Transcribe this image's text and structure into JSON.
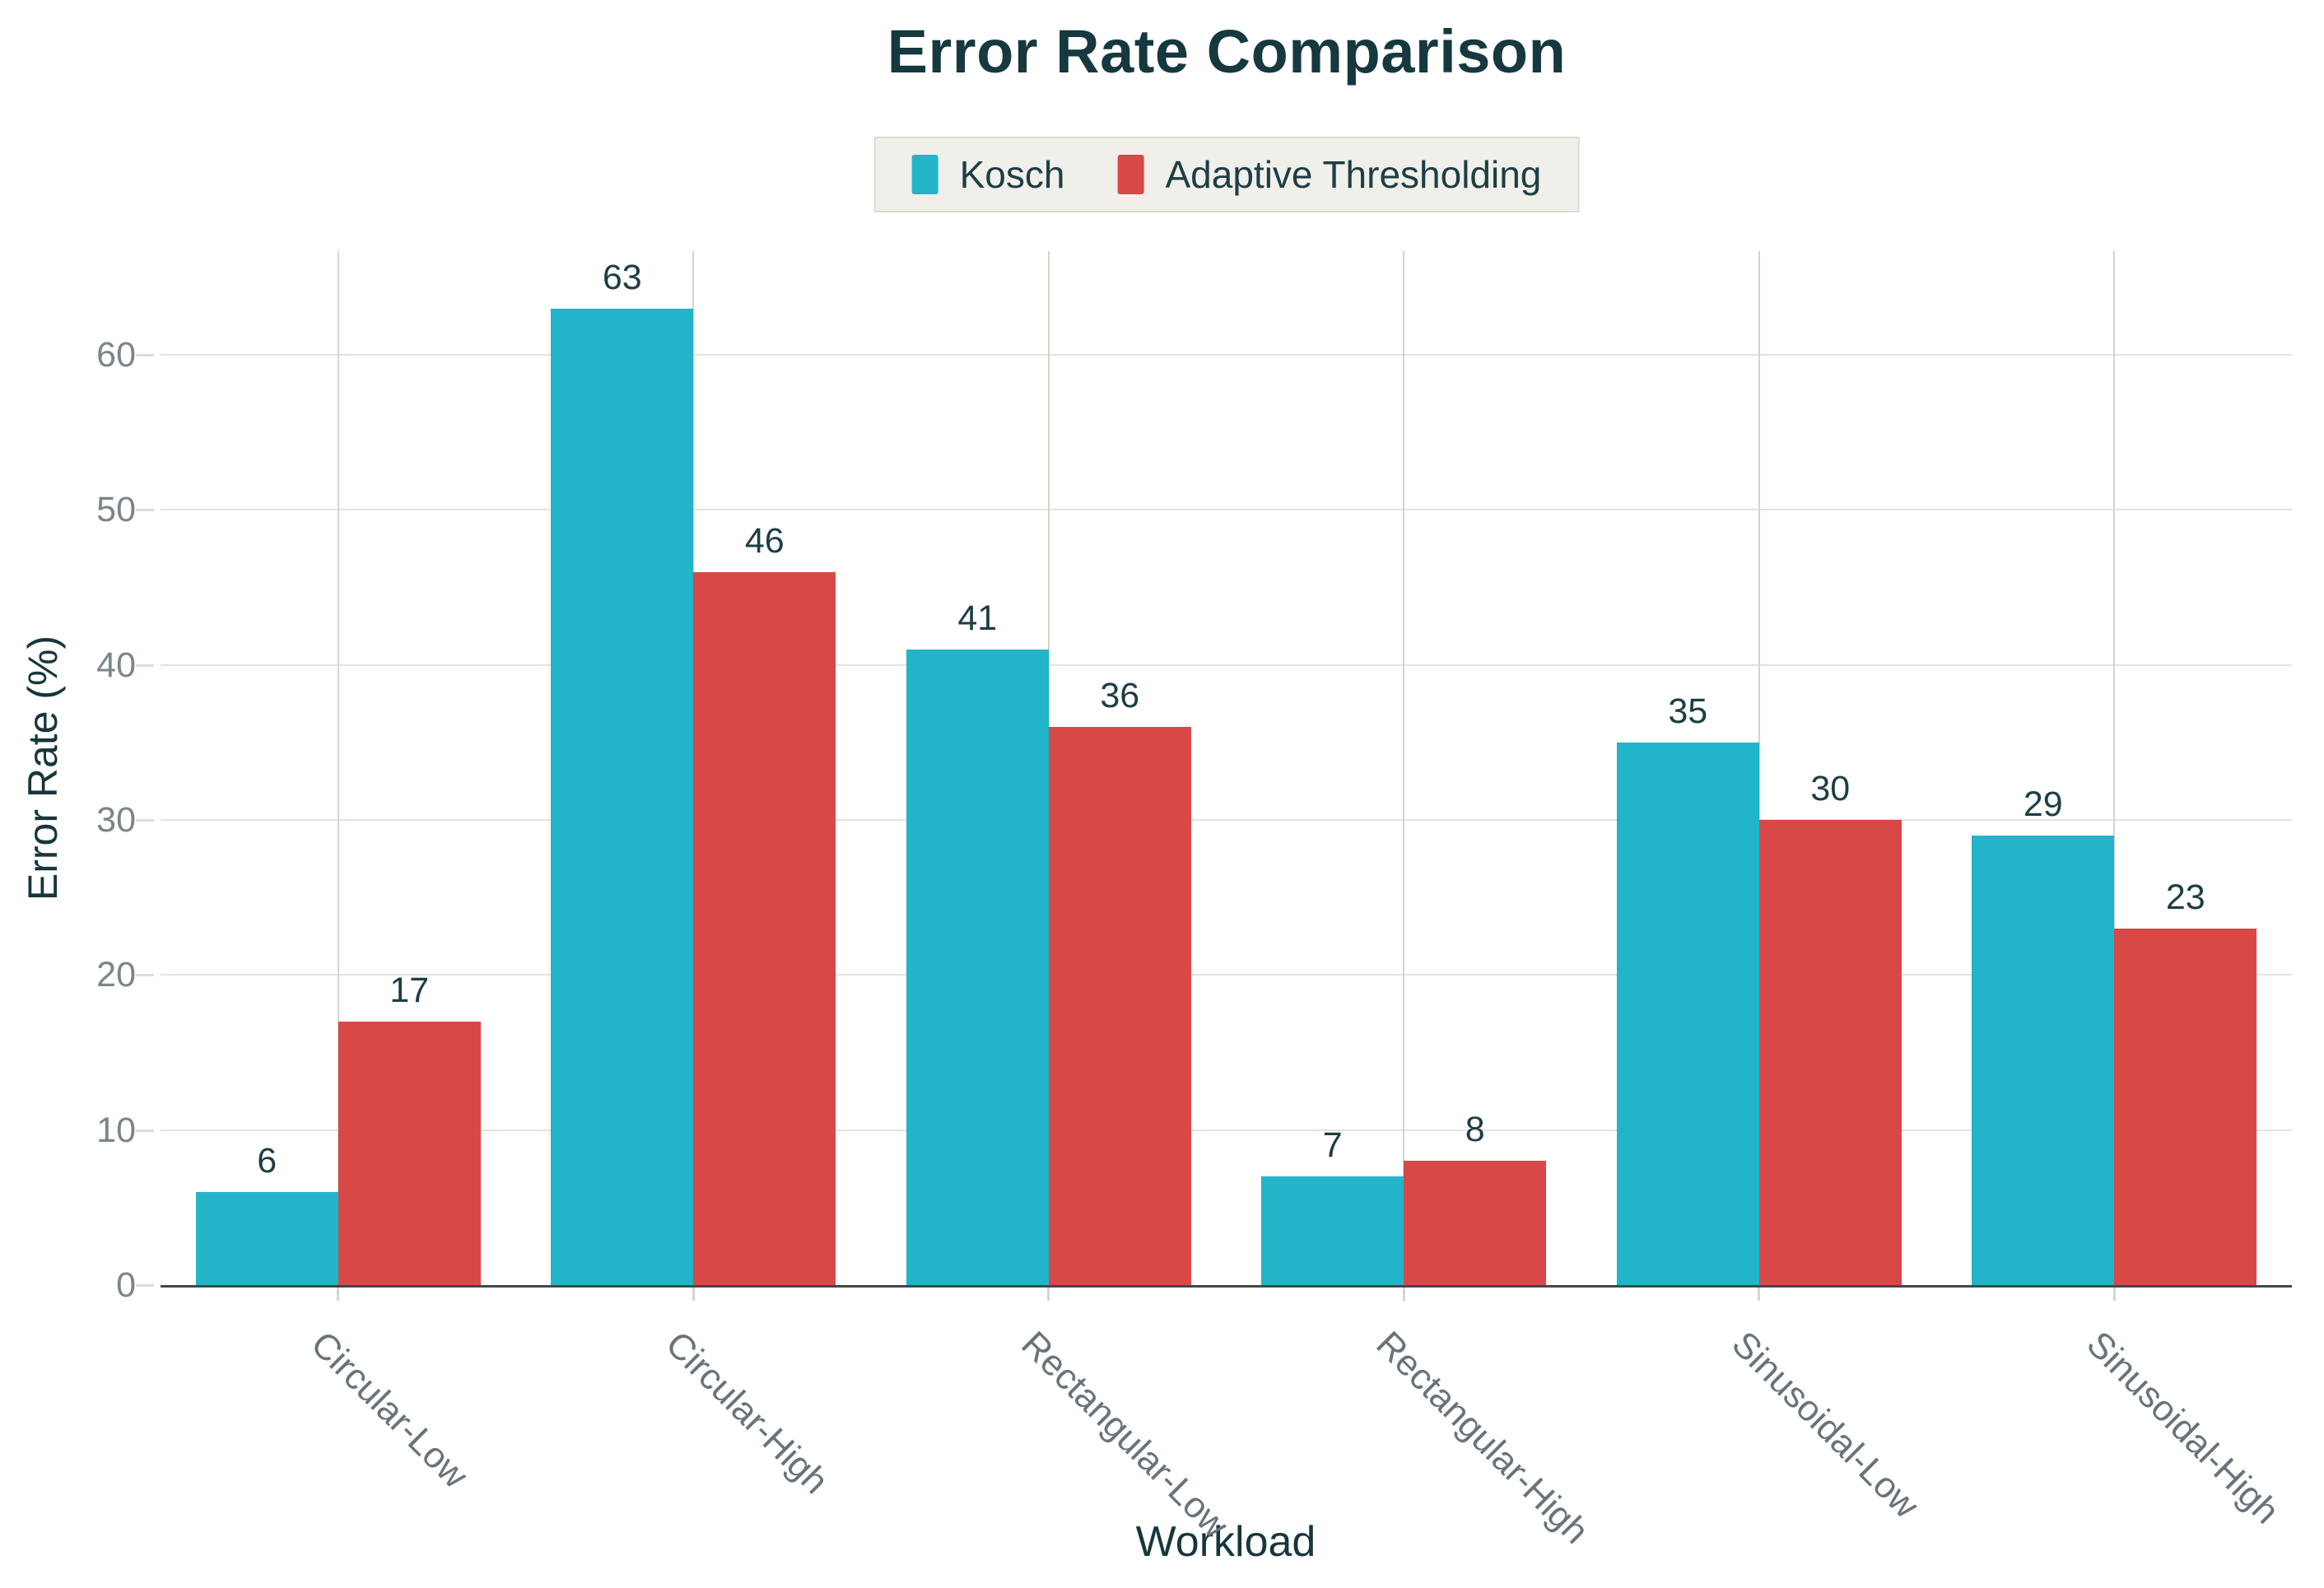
{
  "chart_data": {
    "type": "bar",
    "title": "Error Rate Comparison",
    "xlabel": "Workload",
    "ylabel": "Error Rate (%)",
    "categories": [
      "Circular-Low",
      "Circular-High",
      "Rectangular-Low",
      "Rectangular-High",
      "Sinusoidal-Low",
      "Sinusoidal-High"
    ],
    "series": [
      {
        "name": "Kosch",
        "color": "#22b4c8",
        "values": [
          6,
          63,
          41,
          7,
          35,
          29
        ]
      },
      {
        "name": "Adaptive Thresholding",
        "color": "#d74846",
        "values": [
          17,
          46,
          36,
          8,
          30,
          23
        ]
      }
    ],
    "yticks": [
      0,
      10,
      20,
      30,
      40,
      50,
      60
    ],
    "ylim": [
      0,
      66.7
    ],
    "grid": {
      "horizontal": true,
      "vertical": true
    },
    "legend_position": "top",
    "bar_value_labels": true
  },
  "theme": {
    "title_color": "#16383f",
    "axis_title_color": "#17363d",
    "value_label_color": "#1d3e45",
    "y_tick_color": "#7b858a",
    "x_tick_color": "#68737b",
    "h_grid_color": "#e4e2df",
    "v_grid_color": "#d8d2cc",
    "axis_line_color": "#42474a",
    "legend_bg": "#f0efe9",
    "legend_border": "#dddbd2",
    "background": "#ffffff"
  }
}
